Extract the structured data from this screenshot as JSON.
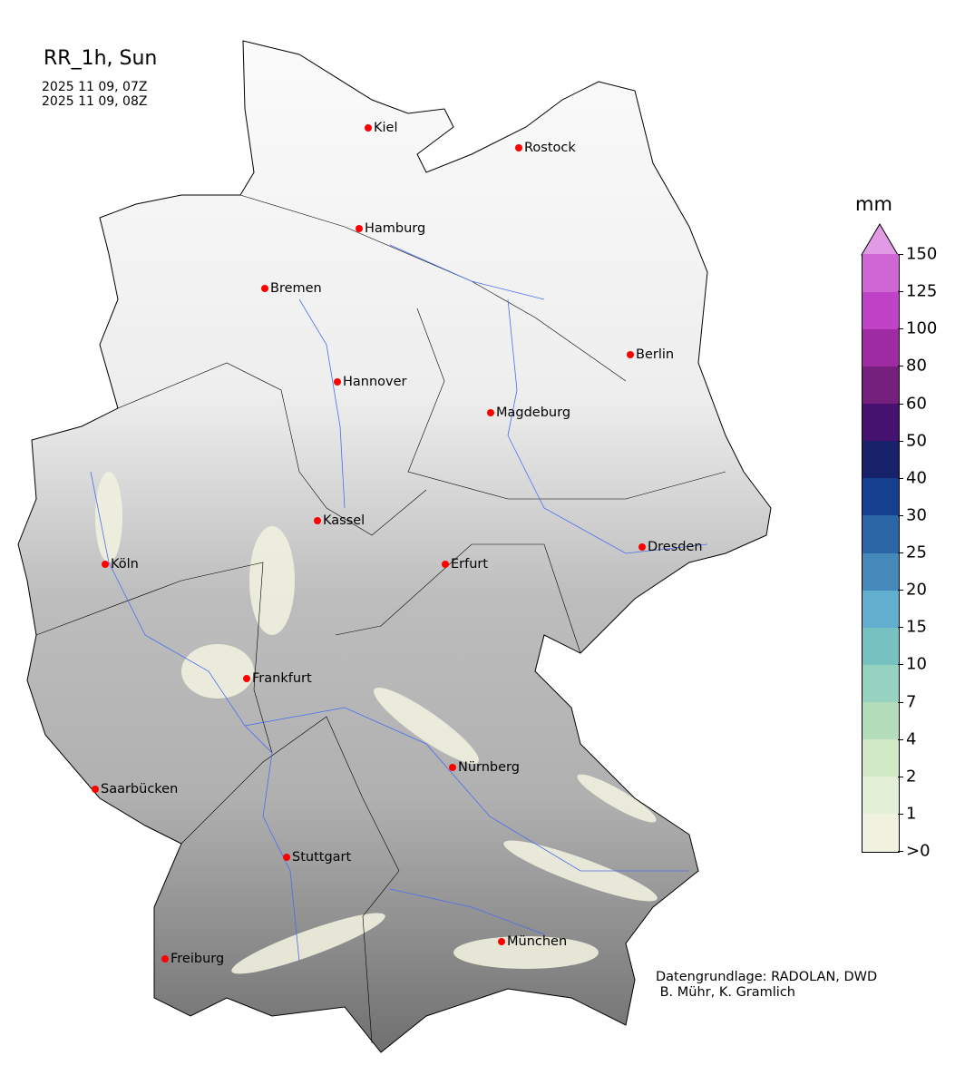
{
  "title": "RR_1h, Sun",
  "time_start": "2025 11 09, 07Z",
  "time_end": "2025 11 09, 08Z",
  "cities": [
    "Kiel",
    "Rostock",
    "Hamburg",
    "Bremen",
    "Berlin",
    "Hannover",
    "Magdeburg",
    "Kassel",
    "Dresden",
    "Köln",
    "Erfurt",
    "Frankfurt",
    "Nürnberg",
    "Saarbücken",
    "Stuttgart",
    "München",
    "Freiburg"
  ],
  "colorbar": {
    "unit": "mm",
    "labels": [
      ">0",
      "1",
      "2",
      "4",
      "7",
      "10",
      "15",
      "20",
      "25",
      "30",
      "40",
      "50",
      "60",
      "80",
      "100",
      "125",
      "150"
    ],
    "colors": [
      "#f1f1e0",
      "#e3efd7",
      "#d1e8c5",
      "#b3dcbb",
      "#95d2c0",
      "#78c1c1",
      "#62aecf",
      "#4589bb",
      "#2b66a7",
      "#173f8f",
      "#18226a",
      "#45126f",
      "#75207c",
      "#9f2ba3",
      "#c042c6",
      "#d066d4"
    ],
    "extend_color": "#e19be4"
  },
  "credit": "Datengrundlage: RADOLAN, DWD\n B. Mühr, K. Gramlich",
  "colors": {
    "city_marker": "#ff0000",
    "rivers": "#4a6cf0",
    "borders": "#000000"
  }
}
